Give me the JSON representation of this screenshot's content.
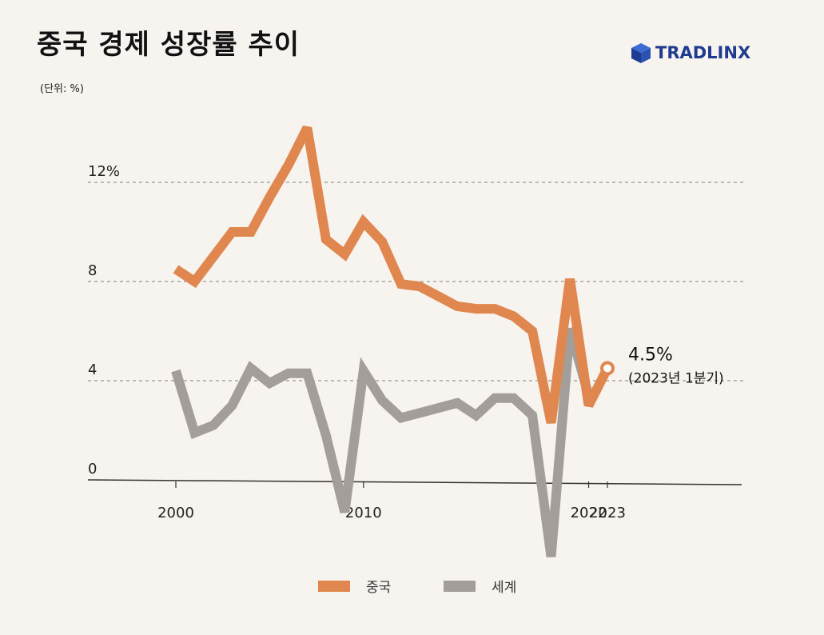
{
  "header": {
    "title": "중국 경제 성장률 추이",
    "unit": "(단위: %)",
    "logo_text": "TRADLINX",
    "logo_icon": "cube-icon",
    "logo_color": "#1f3b8f"
  },
  "colors": {
    "china": "#e0874f",
    "world": "#a39e99",
    "grid": "#9c9690",
    "axis": "#333333"
  },
  "chart_data": {
    "type": "line",
    "title": "중국 경제 성장률 추이",
    "ylabel": "(단위: %)",
    "x": [
      2000,
      2001,
      2002,
      2003,
      2004,
      2005,
      2006,
      2007,
      2008,
      2009,
      2010,
      2011,
      2012,
      2013,
      2014,
      2015,
      2016,
      2017,
      2018,
      2019,
      2020,
      2021,
      2022
    ],
    "series": [
      {
        "name": "중국",
        "values": [
          8.5,
          8.0,
          9.0,
          10.0,
          10.0,
          11.4,
          12.7,
          14.2,
          9.7,
          9.1,
          10.4,
          9.6,
          7.9,
          7.8,
          7.4,
          7.0,
          6.9,
          6.9,
          6.6,
          6.0,
          2.3,
          8.1,
          3.0
        ]
      },
      {
        "name": "세계",
        "values": [
          4.4,
          1.9,
          2.2,
          3.0,
          4.5,
          3.9,
          4.3,
          4.3,
          1.8,
          -1.3,
          4.4,
          3.2,
          2.5,
          2.7,
          2.9,
          3.1,
          2.6,
          3.3,
          3.3,
          2.6,
          -3.1,
          6.1,
          3.4
        ]
      }
    ],
    "annotation_point": {
      "series": "중국",
      "x": 2023,
      "y": 4.5
    },
    "annotation": {
      "value": "4.5%",
      "note": "(2023년 1분기)"
    },
    "y_ticks": [
      "12%",
      "8",
      "4",
      "0"
    ],
    "y_tick_values": [
      12,
      8,
      4,
      0
    ],
    "x_tick_labels": [
      "2000",
      "2010",
      "2022",
      "2023"
    ],
    "x_tick_values": [
      2000,
      2010,
      2022,
      2023
    ],
    "ylim": [
      -3.2,
      14.5
    ],
    "grid": true,
    "legend": "bottom-center"
  },
  "legend": {
    "china_label": "중국",
    "world_label": "세계"
  }
}
